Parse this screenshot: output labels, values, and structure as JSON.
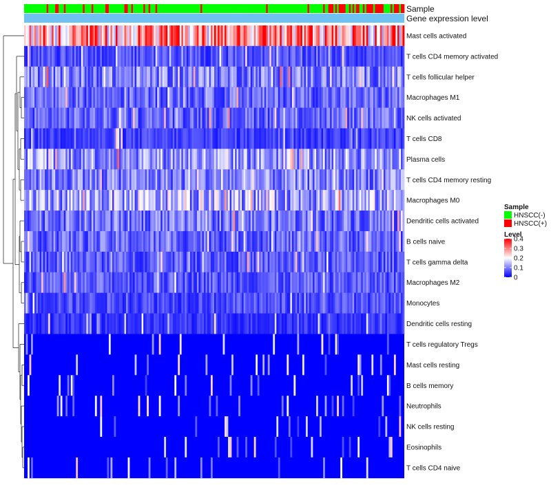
{
  "chart_data": {
    "type": "heatmap",
    "title": "",
    "annotation_tracks": [
      {
        "key": "sample",
        "label": "Sample"
      },
      {
        "key": "gene_expression_level",
        "label": "Gene expression level"
      }
    ],
    "rows": [
      "Mast cells activated",
      "T cells CD4 memory activated",
      "T cells follicular helper",
      "Macrophages M1",
      "NK cells activated",
      "T cells CD8",
      "Plasma cells",
      "T cells CD4 memory resting",
      "Macrophages M0",
      "Dendritic cells activated",
      "B cells naive",
      "T cells gamma delta",
      "Macrophages M2",
      "Monocytes",
      "Dendritic cells resting",
      "T cells regulatory  Tregs",
      "Mast cells resting",
      "B cells memory",
      "Neutrophils",
      "NK cells resting",
      "Eosinophils",
      "T cells CD4 naive"
    ],
    "row_mean_level": [
      0.32,
      0.06,
      0.1,
      0.08,
      0.08,
      0.05,
      0.12,
      0.1,
      0.13,
      0.09,
      0.08,
      0.07,
      0.07,
      0.06,
      0.04,
      0.02,
      0.02,
      0.02,
      0.01,
      0.01,
      0.01,
      0.01
    ],
    "n_samples": 220,
    "sample_groups": [
      "HNSCC(-)",
      "HNSCC(+)"
    ],
    "level_range": [
      0,
      0.4
    ],
    "color_scale": {
      "low": "#0000ff",
      "mid": "#ffffff",
      "high": "#ff0000"
    },
    "legend": {
      "placement": "right",
      "sample_title": "Sample",
      "sample_items": [
        {
          "label": "HNSCC(-)",
          "color": "#00ff00"
        },
        {
          "label": "HNSCC(+)",
          "color": "#ff0000"
        }
      ],
      "level_title": "Level",
      "level_ticks": [
        "0.4",
        "0.3",
        "0.2",
        "0.1",
        "0"
      ],
      "level_tick_values": [
        0.4,
        0.3,
        0.2,
        0.1,
        0
      ]
    },
    "gene_track_color": "#6ec1f0"
  }
}
